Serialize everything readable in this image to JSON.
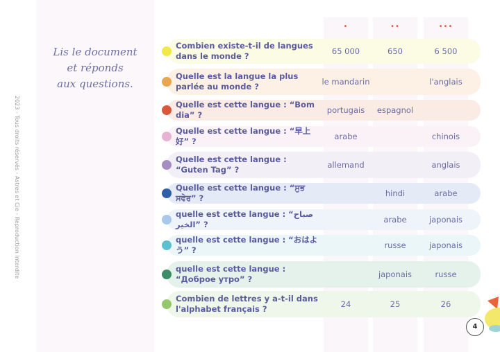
{
  "instruction": [
    "Lis le document",
    "et réponds",
    "aux questions."
  ],
  "copyright": "2023 - Tous droits réservés - Astres et Cie - Reproduction interdite",
  "levels": [
    "•",
    "••",
    "•••"
  ],
  "page_number": "4",
  "rows": [
    {
      "q": "Combien existe-t-il de langues dans le monde ?",
      "answers": [
        "65 000",
        "650",
        "6 500"
      ],
      "dot": "#f1e94a",
      "bg": "#fcfbe4"
    },
    {
      "q": "Quelle est la langue la plus parlée au monde ?",
      "answers": [
        "le mandarin",
        "",
        "l'anglais"
      ],
      "dot": "#e9a54f",
      "bg": "#fdf1e6"
    },
    {
      "q": "Quelle est cette langue : “Bom dia” ?",
      "answers": [
        "portugais",
        "espagnol",
        ""
      ],
      "dot": "#d9573a",
      "bg": "#fbebe5"
    },
    {
      "q": "Quelle est cette langue : “早上好” ?",
      "answers": [
        "arabe",
        "",
        "chinois"
      ],
      "dot": "#e6b3d3",
      "bg": "#fbf2f7"
    },
    {
      "q": "Quelle est cette langue : “Guten Tag” ?",
      "answers": [
        "allemand",
        "",
        "anglais"
      ],
      "dot": "#a58fc2",
      "bg": "#f3eff7"
    },
    {
      "q": "Quelle est cette langue : “ਸੁਭ ਸਵੇਰ” ?",
      "answers": [
        "",
        "hindi",
        "arabe"
      ],
      "dot": "#2f5fa8",
      "bg": "#e5ebf6"
    },
    {
      "q": "quelle est cette langue : “صباح الخير” ?",
      "answers": [
        "",
        "arabe",
        "japonais"
      ],
      "dot": "#a9c8ea",
      "bg": "#eff4fa"
    },
    {
      "q": "quelle est cette langue : “おはよう” ?",
      "answers": [
        "",
        "russe",
        "japonais"
      ],
      "dot": "#5ec0cf",
      "bg": "#ebf6f8"
    },
    {
      "q": "quelle est cette langue : “Доброе утро” ?",
      "answers": [
        "",
        "japonais",
        "russe"
      ],
      "dot": "#3b8c67",
      "bg": "#e5f2ec"
    },
    {
      "q": "Combien de lettres y a-t-il dans l'alphabet français ?",
      "answers": [
        "24",
        "25",
        "26"
      ],
      "dot": "#95c76d",
      "bg": "#eff6ea"
    }
  ]
}
